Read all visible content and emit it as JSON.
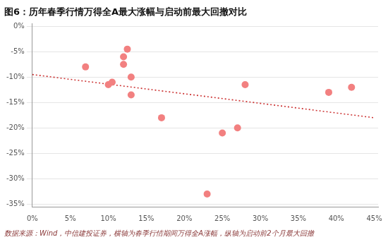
{
  "chart_data": {
    "type": "scatter",
    "title": "图6：历年春季行情万得全A最大涨幅与启动前最大回撤对比",
    "footnote": "数据来源：Wind，中信建投证券，横轴为春季行情期间万得全A涨幅，纵轴为启动前2个月最大回撤",
    "series": [
      {
        "type": "scatter",
        "color": "#f28080",
        "marker": "circle",
        "x": [
          0.07,
          0.1,
          0.105,
          0.12,
          0.12,
          0.125,
          0.13,
          0.13,
          0.17,
          0.23,
          0.25,
          0.27,
          0.28,
          0.39,
          0.42
        ],
        "values": [
          -0.08,
          -0.115,
          -0.11,
          -0.075,
          -0.06,
          -0.045,
          -0.1,
          -0.135,
          -0.18,
          -0.33,
          -0.21,
          -0.2,
          -0.115,
          -0.13,
          -0.12
        ]
      },
      {
        "type": "line",
        "color": "#cc3333",
        "line_style": "dotted",
        "x": [
          0.0,
          0.45
        ],
        "values": [
          -0.095,
          -0.18
        ]
      }
    ],
    "xlim": [
      0.0,
      0.455
    ],
    "ylim": [
      -0.355,
      0.005
    ],
    "xticks": [
      {
        "value": 0.0,
        "label": "0%"
      },
      {
        "value": 0.05,
        "label": "5%"
      },
      {
        "value": 0.1,
        "label": "10%"
      },
      {
        "value": 0.15,
        "label": "15%"
      },
      {
        "value": 0.2,
        "label": "20%"
      },
      {
        "value": 0.25,
        "label": "25%"
      },
      {
        "value": 0.3,
        "label": "30%"
      },
      {
        "value": 0.35,
        "label": "35%"
      },
      {
        "value": 0.4,
        "label": "40%"
      },
      {
        "value": 0.45,
        "label": "45%"
      }
    ],
    "yticks": [
      {
        "value": 0.0,
        "label": "0%"
      },
      {
        "value": -0.05,
        "label": "-5%"
      },
      {
        "value": -0.1,
        "label": "-10%"
      },
      {
        "value": -0.15,
        "label": "-15%"
      },
      {
        "value": -0.2,
        "label": "-20%"
      },
      {
        "value": -0.25,
        "label": "-25%"
      },
      {
        "value": -0.3,
        "label": "-30%"
      },
      {
        "value": -0.35,
        "label": "-35%"
      }
    ],
    "grid": "y"
  }
}
